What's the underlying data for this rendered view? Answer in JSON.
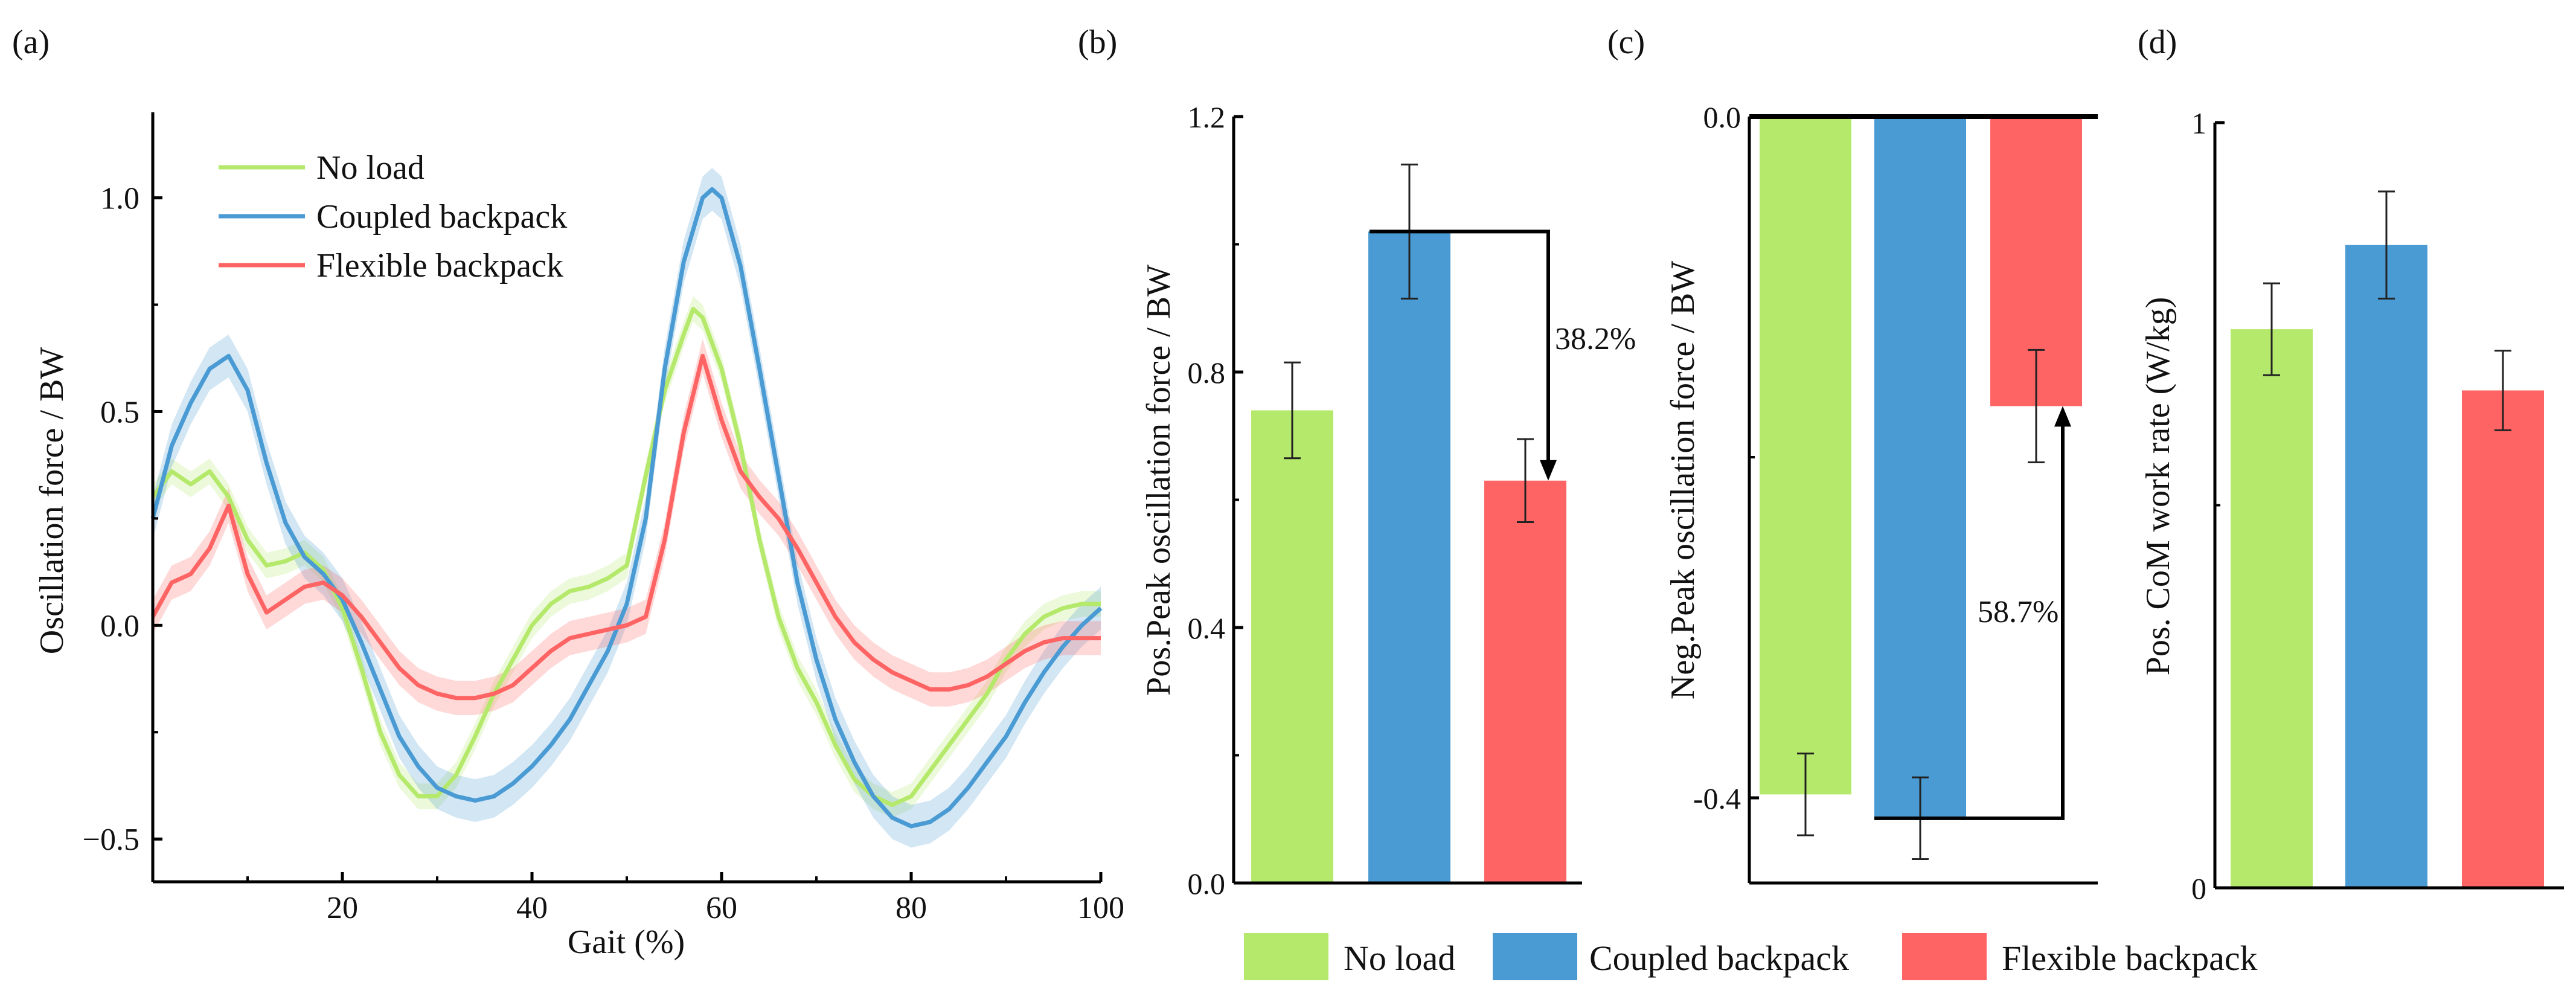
{
  "figure": {
    "colors": {
      "no_load": "#b5e96b",
      "coupled": "#4a9bd4",
      "flexible": "#fe6464",
      "axis": "#000000"
    },
    "legend": [
      "No load",
      "Coupled backpack",
      "Flexible backpack"
    ]
  },
  "chart_data": [
    {
      "id": "a",
      "panel_label": "(a)",
      "type": "line",
      "title": "",
      "xlabel": "Gait (%)",
      "ylabel": "Oscillation force / BW",
      "xlim": [
        0,
        100
      ],
      "ylim": [
        -0.6,
        1.2
      ],
      "xticks": [
        20,
        40,
        60,
        80,
        100
      ],
      "xtick_labels": [
        "20",
        "40",
        "60",
        "80",
        "100"
      ],
      "yticks": [
        -0.5,
        0.0,
        0.5,
        1.0
      ],
      "ytick_labels": [
        "−0.5",
        "0.0",
        "0.5",
        "1.0"
      ],
      "legend": [
        "No load",
        "Coupled backpack",
        "Flexible backpack"
      ],
      "legend_position": "top-left",
      "series": [
        {
          "name": "No load",
          "color": "#b5e96b",
          "band": 0.03,
          "x": [
            0,
            2,
            4,
            6,
            8,
            10,
            12,
            14,
            16,
            18,
            20,
            22,
            24,
            26,
            28,
            30,
            32,
            34,
            36,
            38,
            40,
            42,
            44,
            46,
            48,
            50,
            52,
            54,
            56,
            57,
            58,
            60,
            62,
            64,
            66,
            68,
            70,
            72,
            74,
            76,
            78,
            80,
            82,
            84,
            86,
            88,
            90,
            92,
            94,
            96,
            98,
            100
          ],
          "y": [
            0.3,
            0.36,
            0.33,
            0.36,
            0.3,
            0.2,
            0.14,
            0.15,
            0.17,
            0.13,
            0.04,
            -0.1,
            -0.25,
            -0.35,
            -0.4,
            -0.4,
            -0.35,
            -0.26,
            -0.16,
            -0.08,
            0.0,
            0.05,
            0.08,
            0.09,
            0.11,
            0.14,
            0.35,
            0.55,
            0.68,
            0.74,
            0.72,
            0.6,
            0.42,
            0.2,
            0.02,
            -0.1,
            -0.18,
            -0.28,
            -0.36,
            -0.4,
            -0.42,
            -0.4,
            -0.34,
            -0.28,
            -0.22,
            -0.16,
            -0.08,
            -0.02,
            0.02,
            0.04,
            0.05,
            0.05
          ]
        },
        {
          "name": "Coupled backpack",
          "color": "#4a9bd4",
          "band": 0.05,
          "x": [
            0,
            2,
            4,
            6,
            8,
            10,
            12,
            14,
            16,
            18,
            20,
            22,
            24,
            26,
            28,
            30,
            32,
            34,
            36,
            38,
            40,
            42,
            44,
            46,
            48,
            50,
            52,
            54,
            56,
            58,
            59,
            60,
            62,
            64,
            66,
            68,
            70,
            72,
            74,
            76,
            78,
            80,
            82,
            84,
            86,
            88,
            90,
            92,
            94,
            96,
            98,
            100
          ],
          "y": [
            0.25,
            0.42,
            0.52,
            0.6,
            0.63,
            0.55,
            0.38,
            0.24,
            0.16,
            0.12,
            0.06,
            -0.04,
            -0.15,
            -0.26,
            -0.33,
            -0.38,
            -0.4,
            -0.41,
            -0.4,
            -0.37,
            -0.33,
            -0.28,
            -0.22,
            -0.14,
            -0.06,
            0.05,
            0.25,
            0.6,
            0.85,
            1.0,
            1.02,
            1.0,
            0.84,
            0.6,
            0.35,
            0.1,
            -0.08,
            -0.22,
            -0.32,
            -0.4,
            -0.45,
            -0.47,
            -0.46,
            -0.43,
            -0.38,
            -0.32,
            -0.26,
            -0.18,
            -0.11,
            -0.05,
            0.0,
            0.04
          ]
        },
        {
          "name": "Flexible backpack",
          "color": "#fe6464",
          "band": 0.04,
          "x": [
            0,
            2,
            4,
            6,
            8,
            10,
            12,
            14,
            16,
            18,
            20,
            22,
            24,
            26,
            28,
            30,
            32,
            34,
            36,
            38,
            40,
            42,
            44,
            46,
            48,
            50,
            52,
            54,
            56,
            58,
            60,
            62,
            64,
            66,
            68,
            70,
            72,
            74,
            76,
            78,
            80,
            82,
            84,
            86,
            88,
            90,
            92,
            94,
            96,
            98,
            100
          ],
          "y": [
            0.02,
            0.1,
            0.12,
            0.18,
            0.28,
            0.12,
            0.03,
            0.06,
            0.09,
            0.1,
            0.07,
            0.02,
            -0.04,
            -0.1,
            -0.14,
            -0.16,
            -0.17,
            -0.17,
            -0.16,
            -0.14,
            -0.1,
            -0.06,
            -0.03,
            -0.02,
            -0.01,
            0.0,
            0.02,
            0.2,
            0.45,
            0.63,
            0.48,
            0.36,
            0.3,
            0.25,
            0.18,
            0.1,
            0.02,
            -0.04,
            -0.08,
            -0.11,
            -0.13,
            -0.15,
            -0.15,
            -0.14,
            -0.12,
            -0.09,
            -0.06,
            -0.04,
            -0.03,
            -0.03,
            -0.03
          ]
        }
      ]
    },
    {
      "id": "b",
      "panel_label": "(b)",
      "type": "bar",
      "xlabel": "",
      "ylabel": "Pos.Peak oscillation force / BW",
      "ylim": [
        0.0,
        1.2
      ],
      "yticks": [
        0.0,
        0.4,
        0.8,
        1.2
      ],
      "ytick_labels": [
        "0.0",
        "0.4",
        "0.8",
        "1.2"
      ],
      "categories": [
        "No load",
        "Coupled backpack",
        "Flexible backpack"
      ],
      "values": [
        0.74,
        1.02,
        0.63
      ],
      "errors": [
        0.075,
        0.105,
        0.065
      ],
      "annotation": {
        "text": "38.2%",
        "from_bar": 1,
        "to_bar": 2,
        "direction": "down"
      }
    },
    {
      "id": "c",
      "panel_label": "(c)",
      "type": "bar",
      "xlabel": "",
      "ylabel": "Neg.Peak oscillation force / BW",
      "ylim": [
        -0.45,
        0.0
      ],
      "yticks": [
        -0.4,
        0.0
      ],
      "ytick_labels": [
        "-0.4",
        "0.0"
      ],
      "categories": [
        "No load",
        "Coupled backpack",
        "Flexible backpack"
      ],
      "values": [
        -0.398,
        -0.412,
        -0.17
      ],
      "errors": [
        0.024,
        0.024,
        0.033
      ],
      "annotation": {
        "text": "58.7%",
        "from_bar": 1,
        "to_bar": 2,
        "direction": "up"
      }
    },
    {
      "id": "d",
      "panel_label": "(d)",
      "type": "bar",
      "xlabel": "",
      "ylabel": "Pos. CoM work rate (W/kg)",
      "ylim": [
        0,
        1
      ],
      "yticks": [
        0,
        1
      ],
      "ytick_labels": [
        "0",
        "1"
      ],
      "categories": [
        "No load",
        "Coupled backpack",
        "Flexible backpack"
      ],
      "values": [
        0.73,
        0.84,
        0.65
      ],
      "errors": [
        0.06,
        0.07,
        0.052
      ]
    }
  ]
}
